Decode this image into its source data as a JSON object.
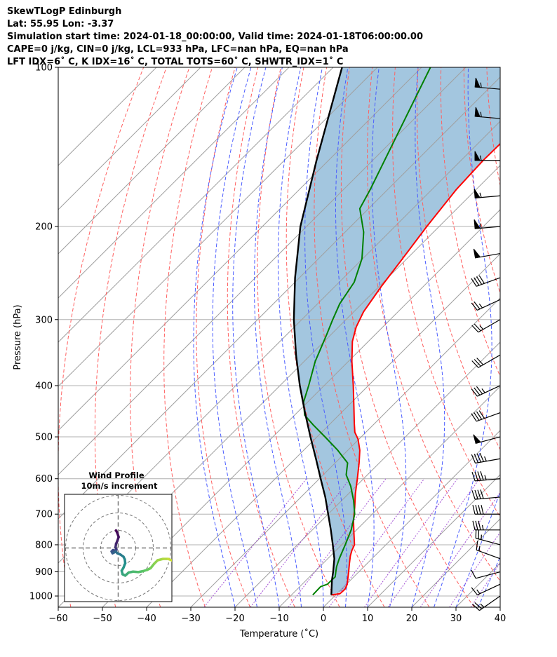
{
  "header": {
    "line1": "SkewTLogP Edinburgh",
    "line2": "Lat: 55.95   Lon: -3.37",
    "line3": "Simulation start time: 2024-01-18_00:00:00, Valid time: 2024-01-18T06:00:00.00",
    "line4": "CAPE=0 j/kg, CIN=0 j/kg, LCL=933 hPa, LFC=nan hPa, EQ=nan hPa",
    "line5": "LFT IDX=6˚ C, K IDX=16˚ C, TOTAL TOTS=60˚ C, SHWTR_IDX=1˚ C"
  },
  "chart_data": {
    "type": "line",
    "title": "SkewTLogP Edinburgh",
    "xlabel": "Temperature (˚C)",
    "ylabel": "Pressure (hPa)",
    "xlim": [
      -60,
      40
    ],
    "ylim": [
      1050,
      100
    ],
    "yscale": "log",
    "x_ticks": [
      -60,
      -50,
      -40,
      -30,
      -20,
      -10,
      0,
      10,
      20,
      30,
      40
    ],
    "x_tick_labels": [
      "−60",
      "−50",
      "−40",
      "−30",
      "−20",
      "−10",
      "0",
      "10",
      "20",
      "30",
      "40"
    ],
    "y_ticks": [
      100,
      200,
      300,
      400,
      500,
      600,
      700,
      800,
      900,
      1000
    ],
    "y_tick_labels": [
      "100",
      "200",
      "300",
      "400",
      "500",
      "600",
      "700",
      "800",
      "900",
      "1000"
    ],
    "grid": true,
    "colors": {
      "temperature": "#ff0000",
      "dewpoint": "#008000",
      "parcel": "#000000",
      "shade": "#a3c6df",
      "dry_adiabat": "#ff6060",
      "moist_adiabat": "#4a5cff",
      "mixing_ratio": "#9a3fd0",
      "isotherm": "#a0a0a0"
    },
    "series": [
      {
        "key": "temperature",
        "pressure": [
          995,
          990,
          970,
          950,
          930,
          900,
          870,
          840,
          820,
          800,
          760,
          720,
          680,
          640,
          600,
          560,
          530,
          505,
          490,
          470,
          440,
          400,
          360,
          330,
          310,
          290,
          260,
          230,
          200,
          170,
          150,
          130,
          115,
          100
        ],
        "values": [
          -1,
          0.7,
          0.8,
          0.2,
          -0.8,
          -2.3,
          -3.9,
          -5.5,
          -6.4,
          -7.1,
          -9.9,
          -12.8,
          -15.5,
          -18.5,
          -21.4,
          -24.6,
          -27.3,
          -30.2,
          -32.5,
          -34.8,
          -38.3,
          -43.4,
          -49.2,
          -53.6,
          -56.0,
          -57.8,
          -59.5,
          -61.0,
          -62.8,
          -64.5,
          -65.0,
          -64.8,
          -63.0,
          -61.0
        ]
      },
      {
        "key": "dewpoint",
        "pressure": [
          995,
          960,
          950,
          920,
          900,
          880,
          850,
          800,
          750,
          700,
          660,
          620,
          590,
          560,
          530,
          500,
          475,
          455,
          430,
          400,
          360,
          320,
          300,
          280,
          255,
          230,
          205,
          185,
          170,
          100
        ],
        "values": [
          -5.2,
          -5.3,
          -4.3,
          -4.2,
          -5.2,
          -6.2,
          -7.4,
          -9.2,
          -11.2,
          -14.0,
          -17.3,
          -21.2,
          -24.8,
          -27.2,
          -32.3,
          -38.2,
          -43.5,
          -47.7,
          -50.9,
          -53.5,
          -57.5,
          -61.0,
          -63.0,
          -65.0,
          -66.6,
          -70.2,
          -75.8,
          -82.0,
          -84.0,
          -98.0
        ]
      },
      {
        "key": "parcel",
        "pressure": [
          995,
          933,
          900,
          850,
          800,
          750,
          700,
          650,
          600,
          550,
          500,
          450,
          400,
          350,
          300,
          250,
          200,
          150,
          100
        ],
        "values": [
          -1,
          -4.2,
          -5.8,
          -8.5,
          -12,
          -15.8,
          -20,
          -24.5,
          -29.7,
          -35.3,
          -41.5,
          -48.2,
          -55.5,
          -63.3,
          -71.8,
          -81,
          -91.4,
          -102.7,
          -118
        ]
      }
    ],
    "wind_barbs": {
      "pressure": [
        1000,
        950,
        900,
        850,
        800,
        750,
        700,
        650,
        600,
        550,
        500,
        450,
        400,
        350,
        300,
        275,
        250,
        225,
        200,
        175,
        150,
        125,
        110
      ],
      "speed_kt": [
        25,
        15,
        10,
        15,
        25,
        35,
        40,
        40,
        45,
        45,
        50,
        40,
        35,
        30,
        25,
        25,
        40,
        50,
        55,
        55,
        55,
        55,
        55
      ],
      "direction_deg": [
        235,
        245,
        255,
        290,
        285,
        270,
        270,
        265,
        265,
        260,
        255,
        250,
        245,
        240,
        240,
        245,
        250,
        260,
        265,
        265,
        270,
        275,
        275
      ]
    },
    "inset": {
      "title": "Wind Profile",
      "subtitle": "10m/s increment",
      "type": "hodograph",
      "u": [
        -0.5,
        -0.2,
        0.1,
        -0.2,
        -0.5,
        -0.6,
        -0.4,
        -0.7,
        -1.2,
        -1.5,
        -1.3,
        -0.9,
        -0.6,
        -0.2,
        0.5,
        1.2,
        1.5,
        1.6,
        1.2,
        0.8,
        1.0,
        1.6,
        2.4,
        3.4,
        4.6,
        5.6,
        6.6,
        7.4,
        8.2,
        9.0,
        10.2,
        11.4,
        12.4,
        13.4,
        14.0,
        14.5
      ],
      "v": [
        4.0,
        3.4,
        2.5,
        1.6,
        0.9,
        0.2,
        -0.4,
        -0.6,
        -0.5,
        -0.8,
        -1.2,
        -1.0,
        -0.8,
        -1.2,
        -1.5,
        -2.0,
        -2.6,
        -3.5,
        -4.5,
        -5.2,
        -6.0,
        -6.3,
        -5.6,
        -5.4,
        -5.5,
        -5.3,
        -5.0,
        -4.6,
        -3.6,
        -2.8,
        -2.5,
        -2.5,
        -2.9,
        -3.0,
        -2.7,
        -2.2
      ],
      "color_scale": [
        "#440154",
        "#3b528b",
        "#21918c",
        "#5ec962",
        "#fde725"
      ]
    }
  }
}
